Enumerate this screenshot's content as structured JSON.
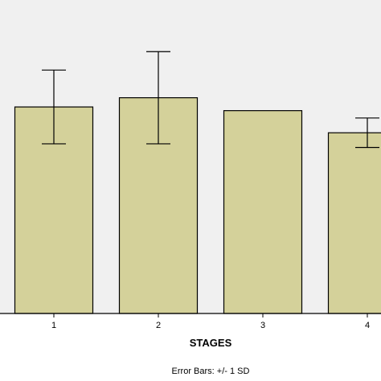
{
  "chart_data": {
    "type": "bar",
    "categories": [
      "1",
      "2",
      "3",
      "4"
    ],
    "values": [
      56,
      58.5,
      55,
      49
    ],
    "error_sd": [
      10,
      12.5,
      null,
      4
    ],
    "xlabel": "STAGES",
    "ylabel": "",
    "ylim": [
      0,
      85
    ],
    "footnote": "Error Bars: +/- 1 SD",
    "grid": false,
    "colors": {
      "plot_background": "#f0f0f0",
      "bar_fill": "#d4d19a",
      "bar_stroke": "#000000",
      "error_bar": "#000000"
    }
  }
}
